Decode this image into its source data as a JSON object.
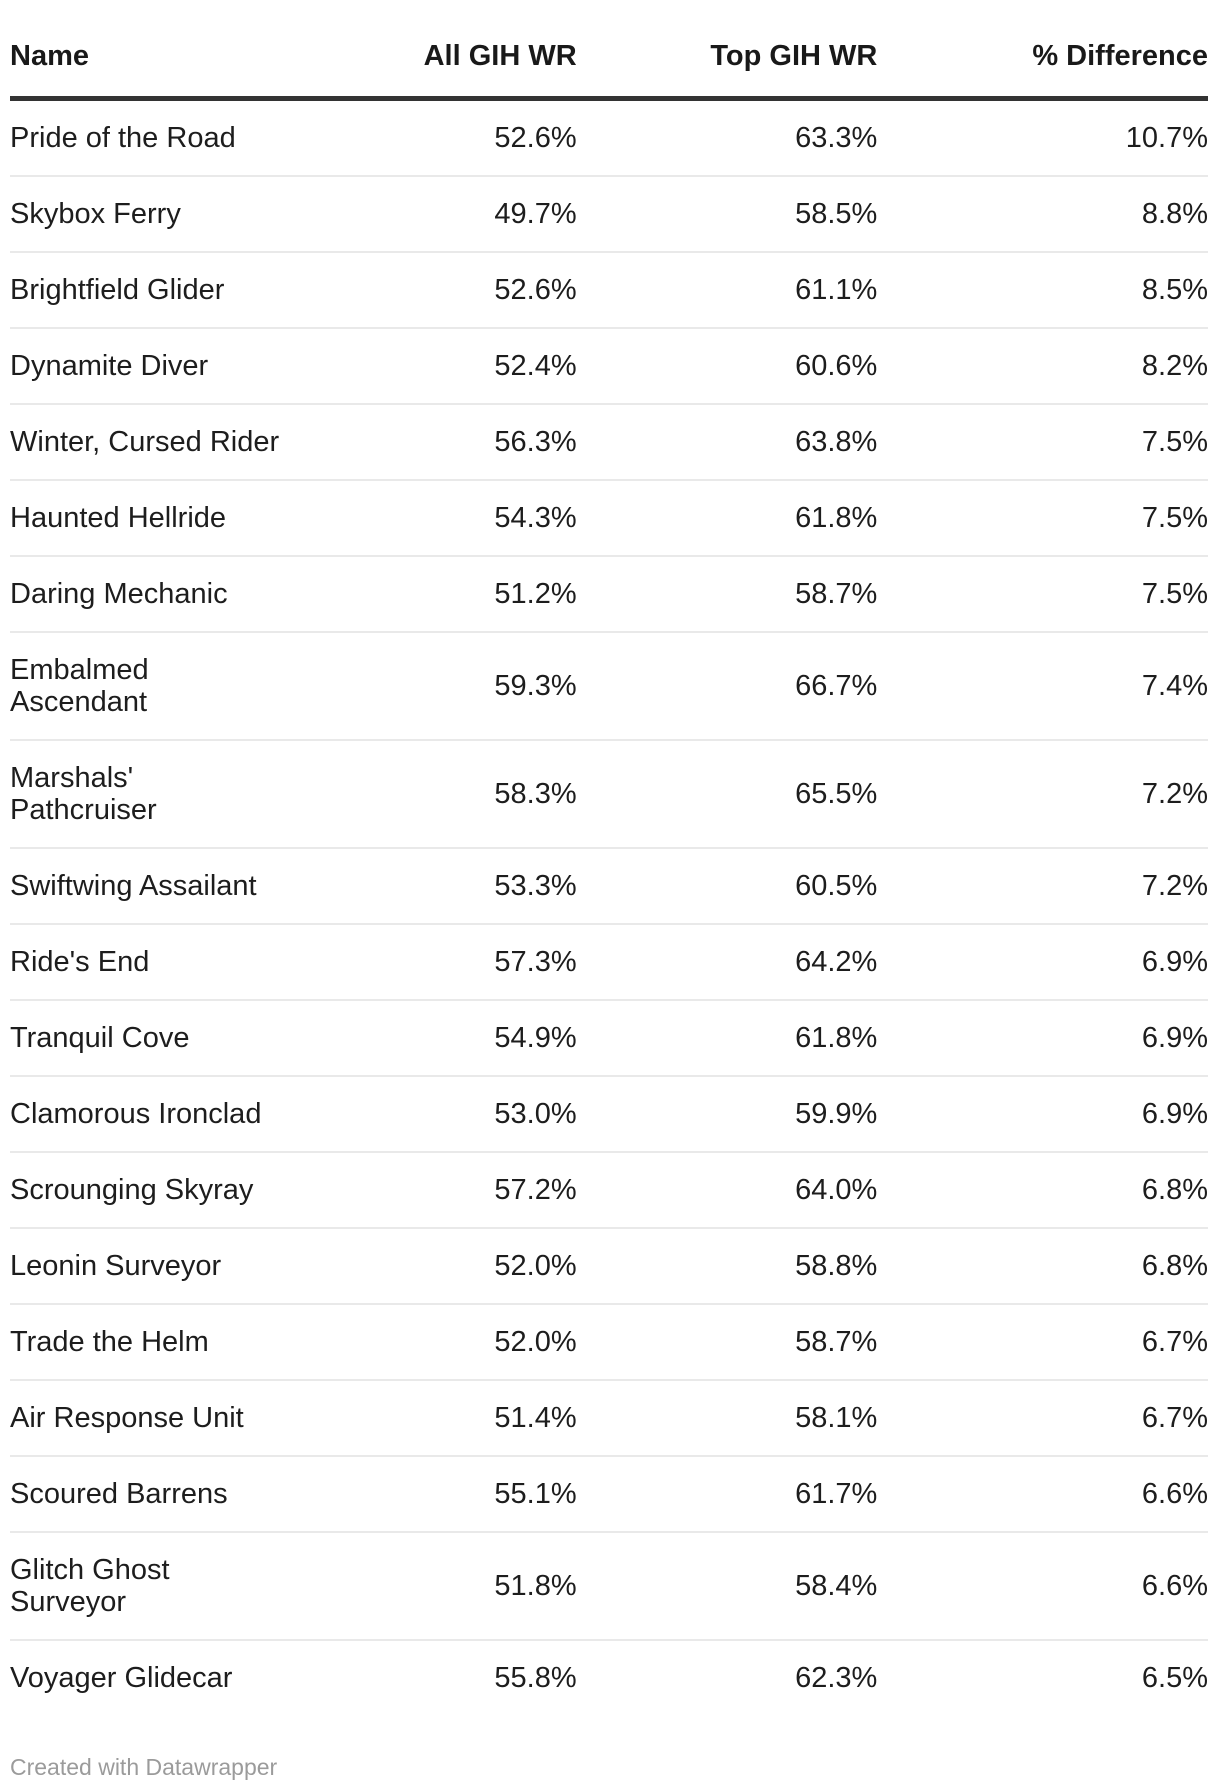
{
  "chart_data": {
    "type": "table",
    "columns": [
      "Name",
      "All GIH WR",
      "Top GIH WR",
      "% Difference"
    ],
    "rows": [
      {
        "name": "Pride of the Road",
        "all_gih_wr": "52.6%",
        "top_gih_wr": "63.3%",
        "difference": "10.7%"
      },
      {
        "name": "Skybox Ferry",
        "all_gih_wr": "49.7%",
        "top_gih_wr": "58.5%",
        "difference": "8.8%"
      },
      {
        "name": "Brightfield Glider",
        "all_gih_wr": "52.6%",
        "top_gih_wr": "61.1%",
        "difference": "8.5%"
      },
      {
        "name": "Dynamite Diver",
        "all_gih_wr": "52.4%",
        "top_gih_wr": "60.6%",
        "difference": "8.2%"
      },
      {
        "name": "Winter, Cursed Rider",
        "all_gih_wr": "56.3%",
        "top_gih_wr": "63.8%",
        "difference": "7.5%"
      },
      {
        "name": "Haunted Hellride",
        "all_gih_wr": "54.3%",
        "top_gih_wr": "61.8%",
        "difference": "7.5%"
      },
      {
        "name": "Daring Mechanic",
        "all_gih_wr": "51.2%",
        "top_gih_wr": "58.7%",
        "difference": "7.5%"
      },
      {
        "name": "Embalmed\nAscendant",
        "all_gih_wr": "59.3%",
        "top_gih_wr": "66.7%",
        "difference": "7.4%"
      },
      {
        "name": "Marshals'\nPathcruiser",
        "all_gih_wr": "58.3%",
        "top_gih_wr": "65.5%",
        "difference": "7.2%"
      },
      {
        "name": "Swiftwing Assailant",
        "all_gih_wr": "53.3%",
        "top_gih_wr": "60.5%",
        "difference": "7.2%"
      },
      {
        "name": "Ride's End",
        "all_gih_wr": "57.3%",
        "top_gih_wr": "64.2%",
        "difference": "6.9%"
      },
      {
        "name": "Tranquil Cove",
        "all_gih_wr": "54.9%",
        "top_gih_wr": "61.8%",
        "difference": "6.9%"
      },
      {
        "name": "Clamorous Ironclad",
        "all_gih_wr": "53.0%",
        "top_gih_wr": "59.9%",
        "difference": "6.9%"
      },
      {
        "name": "Scrounging Skyray",
        "all_gih_wr": "57.2%",
        "top_gih_wr": "64.0%",
        "difference": "6.8%"
      },
      {
        "name": "Leonin Surveyor",
        "all_gih_wr": "52.0%",
        "top_gih_wr": "58.8%",
        "difference": "6.8%"
      },
      {
        "name": "Trade the Helm",
        "all_gih_wr": "52.0%",
        "top_gih_wr": "58.7%",
        "difference": "6.7%"
      },
      {
        "name": "Air Response Unit",
        "all_gih_wr": "51.4%",
        "top_gih_wr": "58.1%",
        "difference": "6.7%"
      },
      {
        "name": "Scoured Barrens",
        "all_gih_wr": "55.1%",
        "top_gih_wr": "61.7%",
        "difference": "6.6%"
      },
      {
        "name": "Glitch Ghost\nSurveyor",
        "all_gih_wr": "51.8%",
        "top_gih_wr": "58.4%",
        "difference": "6.6%"
      },
      {
        "name": "Voyager Glidecar",
        "all_gih_wr": "55.8%",
        "top_gih_wr": "62.3%",
        "difference": "6.5%"
      }
    ],
    "layout": {
      "grid": "horizontal row separators only",
      "numeric_alignment": "right",
      "name_alignment": "left"
    }
  },
  "footer": {
    "credit": "Created with Datawrapper"
  },
  "colors": {
    "background": "#ffffff",
    "text": "#1d1d1d",
    "header_border": "#333333",
    "row_border": "#e9e9e9",
    "footer_text": "#9b9b9b"
  }
}
